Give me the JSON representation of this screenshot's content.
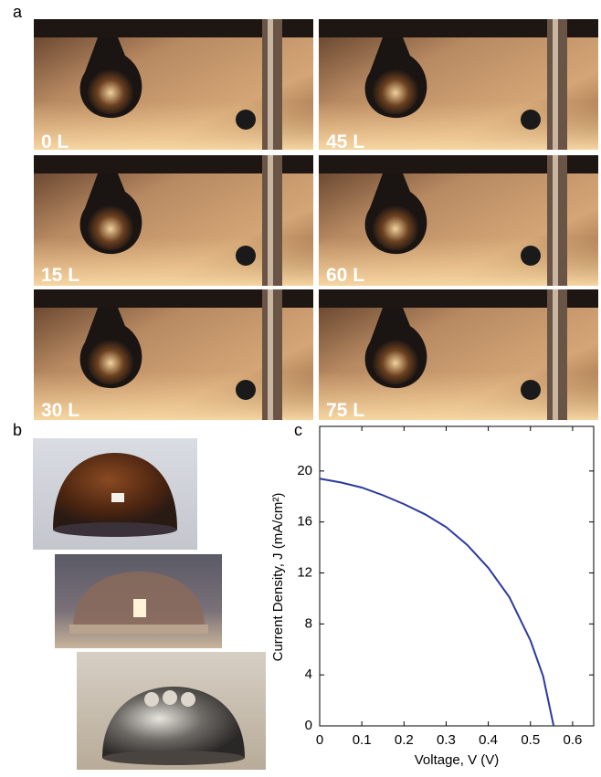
{
  "panels": {
    "a": {
      "label": "a",
      "frames": [
        "0 L",
        "45 L",
        "15 L",
        "60 L",
        "30 L",
        "75 L"
      ]
    },
    "b": {
      "label": "b"
    },
    "c": {
      "label": "c"
    }
  },
  "chart_data": {
    "type": "line",
    "x": [
      0,
      0.05,
      0.1,
      0.15,
      0.2,
      0.25,
      0.3,
      0.35,
      0.4,
      0.45,
      0.5,
      0.53,
      0.555
    ],
    "values": [
      19.4,
      19.1,
      18.7,
      18.1,
      17.4,
      16.6,
      15.6,
      14.2,
      12.4,
      10.1,
      6.7,
      3.9,
      0
    ],
    "color": "#2b3a9e",
    "xlabel": "Voltage, V (V)",
    "ylabel": "Current Density, J (mA/cm²)",
    "xlim": [
      0,
      0.65
    ],
    "ylim": [
      0,
      23.5
    ],
    "xticks": [
      0,
      0.1,
      0.2,
      0.3,
      0.4,
      0.5,
      0.6
    ],
    "yticks": [
      0,
      4,
      8,
      12,
      16,
      20
    ],
    "grid": false
  }
}
